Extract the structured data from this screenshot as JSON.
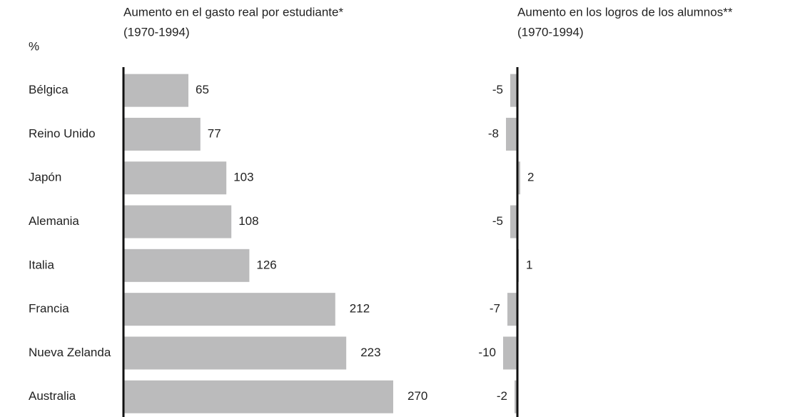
{
  "chart_data": [
    {
      "type": "bar",
      "title": "Aumento en el gasto real por estudiante*",
      "subtitle": "(1970-1994)",
      "ylabel": "%",
      "categories": [
        "Bélgica",
        "Reino Unido",
        "Japón",
        "Alemania",
        "Italia",
        "Francia",
        "Nueva Zelanda",
        "Australia"
      ],
      "values": [
        65,
        77,
        103,
        108,
        126,
        212,
        223,
        270
      ],
      "color": "#bbbbbc",
      "xlim": [
        0,
        300
      ]
    },
    {
      "type": "bar",
      "title": "Aumento en los logros de los alumnos**",
      "subtitle": "(1970-1994)",
      "values": [
        -5,
        -8,
        2,
        -5,
        1,
        -7,
        -10,
        -2
      ],
      "color": "#bbbbbc",
      "xlim": [
        -10,
        10
      ]
    }
  ]
}
